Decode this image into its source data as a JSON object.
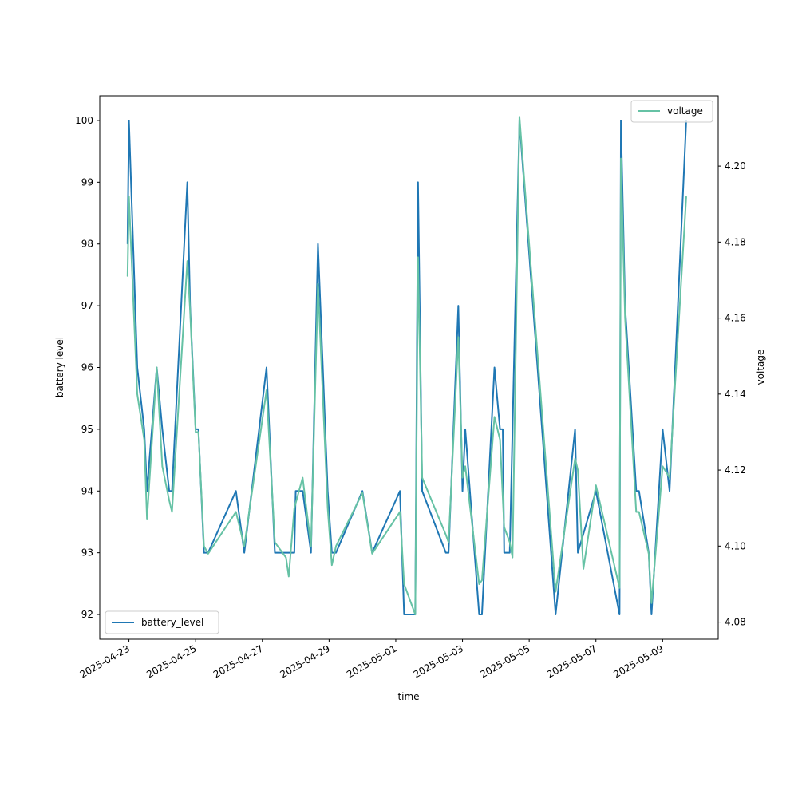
{
  "chart_data": {
    "type": "line",
    "xlabel": "time",
    "ylabel_left": "battery level",
    "ylabel_right": "voltage",
    "xlim": [
      "2025-04-22 03:00",
      "2025-05-10 16:00"
    ],
    "ylim_left": [
      91.6,
      100.4
    ],
    "ylim_right": [
      4.0755,
      4.2185
    ],
    "x_ticks": [
      "2025-04-23",
      "2025-04-25",
      "2025-04-27",
      "2025-04-29",
      "2025-05-01",
      "2025-05-03",
      "2025-05-05",
      "2025-05-07",
      "2025-05-09"
    ],
    "y_ticks_left": [
      92,
      93,
      94,
      95,
      96,
      97,
      98,
      99,
      100
    ],
    "y_ticks_right": [
      "4.08",
      "4.10",
      "4.12",
      "4.14",
      "4.16",
      "4.18",
      "4.20"
    ],
    "grid": false,
    "series": [
      {
        "name": "battery_level",
        "axis": "left",
        "color": "#1f77b4",
        "legend": "lower-left",
        "points": [
          [
            "2025-04-22 23:00",
            98
          ],
          [
            "2025-04-23 00:00",
            100
          ],
          [
            "2025-04-23 06:00",
            96
          ],
          [
            "2025-04-23 11:00",
            95
          ],
          [
            "2025-04-23 13:00",
            94
          ],
          [
            "2025-04-23 20:00",
            96
          ],
          [
            "2025-04-24 00:00",
            95
          ],
          [
            "2025-04-24 05:00",
            94
          ],
          [
            "2025-04-24 07:00",
            94
          ],
          [
            "2025-04-24 18:00",
            99
          ],
          [
            "2025-04-24 20:00",
            97
          ],
          [
            "2025-04-25 00:00",
            95
          ],
          [
            "2025-04-25 02:00",
            95
          ],
          [
            "2025-04-25 06:00",
            93
          ],
          [
            "2025-04-25 09:00",
            93
          ],
          [
            "2025-04-26 05:00",
            94
          ],
          [
            "2025-04-26 11:00",
            93
          ],
          [
            "2025-04-27 03:00",
            96
          ],
          [
            "2025-04-27 09:00",
            93
          ],
          [
            "2025-04-27 23:00",
            93
          ],
          [
            "2025-04-28 00:00",
            94
          ],
          [
            "2025-04-28 05:00",
            94
          ],
          [
            "2025-04-28 11:00",
            93
          ],
          [
            "2025-04-28 16:00",
            98
          ],
          [
            "2025-04-28 23:00",
            94
          ],
          [
            "2025-04-29 02:00",
            93
          ],
          [
            "2025-04-29 05:00",
            93
          ],
          [
            "2025-04-30 00:00",
            94
          ],
          [
            "2025-04-30 07:00",
            93
          ],
          [
            "2025-05-01 03:00",
            94
          ],
          [
            "2025-05-01 06:00",
            92
          ],
          [
            "2025-05-01 14:00",
            92
          ],
          [
            "2025-05-01 16:00",
            99
          ],
          [
            "2025-05-01 19:00",
            94
          ],
          [
            "2025-05-02 12:00",
            93
          ],
          [
            "2025-05-02 14:00",
            93
          ],
          [
            "2025-05-02 21:00",
            97
          ],
          [
            "2025-05-03 00:00",
            94
          ],
          [
            "2025-05-03 02:00",
            95
          ],
          [
            "2025-05-03 12:00",
            92
          ],
          [
            "2025-05-03 14:00",
            92
          ],
          [
            "2025-05-03 23:00",
            96
          ],
          [
            "2025-05-04 03:00",
            95
          ],
          [
            "2025-05-04 05:00",
            95
          ],
          [
            "2025-05-04 06:00",
            93
          ],
          [
            "2025-05-04 10:00",
            93
          ],
          [
            "2025-05-04 17:00",
            100
          ],
          [
            "2025-05-05 19:00",
            92
          ],
          [
            "2025-05-06 09:00",
            95
          ],
          [
            "2025-05-06 11:00",
            93
          ],
          [
            "2025-05-07 00:00",
            94
          ],
          [
            "2025-05-07 17:00",
            92
          ],
          [
            "2025-05-07 18:00",
            100
          ],
          [
            "2025-05-07 21:00",
            97
          ],
          [
            "2025-05-08 05:00",
            94
          ],
          [
            "2025-05-08 07:00",
            94
          ],
          [
            "2025-05-08 14:00",
            93
          ],
          [
            "2025-05-08 16:00",
            92
          ],
          [
            "2025-05-09 00:00",
            95
          ],
          [
            "2025-05-09 05:00",
            94
          ],
          [
            "2025-05-09 17:00",
            100
          ]
        ]
      },
      {
        "name": "voltage",
        "axis": "right",
        "color": "#66c2a5",
        "legend": "upper-right",
        "points": [
          [
            "2025-04-22 23:00",
            4.171
          ],
          [
            "2025-04-23 00:00",
            4.192
          ],
          [
            "2025-04-23 06:00",
            4.14
          ],
          [
            "2025-04-23 11:00",
            4.128
          ],
          [
            "2025-04-23 13:00",
            4.107
          ],
          [
            "2025-04-23 20:00",
            4.147
          ],
          [
            "2025-04-24 00:00",
            4.121
          ],
          [
            "2025-04-24 05:00",
            4.112
          ],
          [
            "2025-04-24 07:00",
            4.109
          ],
          [
            "2025-04-24 18:00",
            4.175
          ],
          [
            "2025-04-24 20:00",
            4.162
          ],
          [
            "2025-04-25 00:00",
            4.13
          ],
          [
            "2025-04-25 02:00",
            4.13
          ],
          [
            "2025-04-25 06:00",
            4.1
          ],
          [
            "2025-04-25 09:00",
            4.098
          ],
          [
            "2025-04-26 05:00",
            4.109
          ],
          [
            "2025-04-26 11:00",
            4.1
          ],
          [
            "2025-04-27 03:00",
            4.141
          ],
          [
            "2025-04-27 09:00",
            4.101
          ],
          [
            "2025-04-27 17:00",
            4.097
          ],
          [
            "2025-04-27 19:00",
            4.092
          ],
          [
            "2025-04-27 23:00",
            4.11
          ],
          [
            "2025-04-28 05:00",
            4.118
          ],
          [
            "2025-04-28 11:00",
            4.1
          ],
          [
            "2025-04-28 16:00",
            4.169
          ],
          [
            "2025-04-28 23:00",
            4.11
          ],
          [
            "2025-04-29 02:00",
            4.095
          ],
          [
            "2025-04-29 05:00",
            4.1
          ],
          [
            "2025-04-30 00:00",
            4.114
          ],
          [
            "2025-04-30 07:00",
            4.098
          ],
          [
            "2025-05-01 03:00",
            4.109
          ],
          [
            "2025-05-01 06:00",
            4.09
          ],
          [
            "2025-05-01 14:00",
            4.082
          ],
          [
            "2025-05-01 16:00",
            4.176
          ],
          [
            "2025-05-01 19:00",
            4.118
          ],
          [
            "2025-05-02 12:00",
            4.103
          ],
          [
            "2025-05-02 14:00",
            4.101
          ],
          [
            "2025-05-02 21:00",
            4.155
          ],
          [
            "2025-05-03 00:00",
            4.118
          ],
          [
            "2025-05-03 02:00",
            4.121
          ],
          [
            "2025-05-03 12:00",
            4.09
          ],
          [
            "2025-05-03 14:00",
            4.091
          ],
          [
            "2025-05-03 23:00",
            4.134
          ],
          [
            "2025-05-04 03:00",
            4.128
          ],
          [
            "2025-05-04 06:00",
            4.105
          ],
          [
            "2025-05-04 10:00",
            4.101
          ],
          [
            "2025-05-04 12:00",
            4.097
          ],
          [
            "2025-05-04 17:00",
            4.213
          ],
          [
            "2025-05-05 19:00",
            4.088
          ],
          [
            "2025-05-06 09:00",
            4.123
          ],
          [
            "2025-05-06 11:00",
            4.12
          ],
          [
            "2025-05-06 15:00",
            4.094
          ],
          [
            "2025-05-07 00:00",
            4.116
          ],
          [
            "2025-05-07 17:00",
            4.089
          ],
          [
            "2025-05-07 18:00",
            4.202
          ],
          [
            "2025-05-07 21:00",
            4.16
          ],
          [
            "2025-05-08 05:00",
            4.109
          ],
          [
            "2025-05-08 07:00",
            4.109
          ],
          [
            "2025-05-08 14:00",
            4.098
          ],
          [
            "2025-05-08 16:00",
            4.085
          ],
          [
            "2025-05-09 00:00",
            4.121
          ],
          [
            "2025-05-09 05:00",
            4.118
          ],
          [
            "2025-05-09 17:00",
            4.192
          ]
        ]
      }
    ]
  }
}
